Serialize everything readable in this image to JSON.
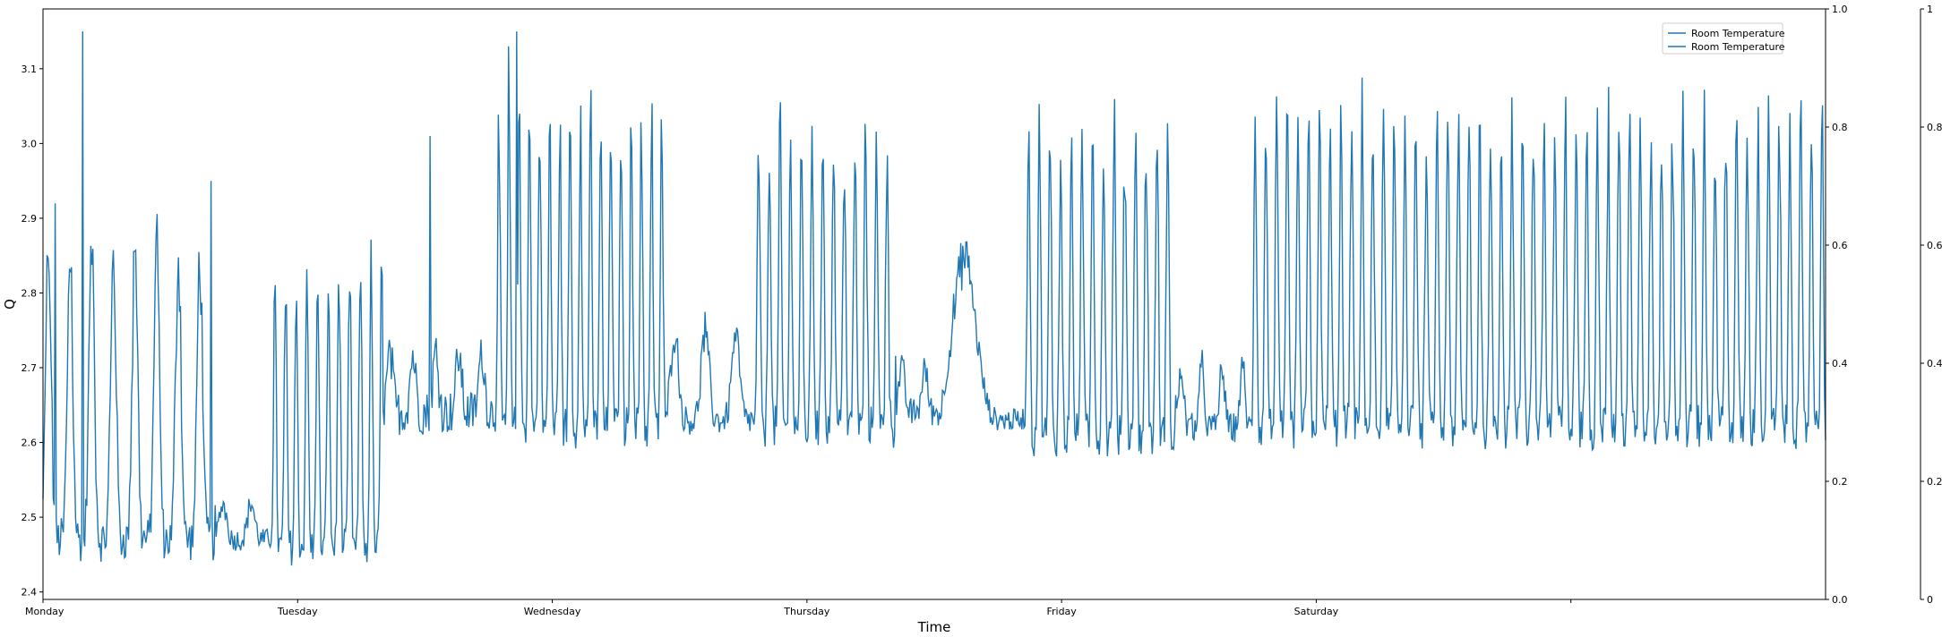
{
  "chart_data": {
    "type": "line",
    "title": "",
    "xlabel": "Time",
    "ylabel": "Q",
    "xlim": [
      0,
      7
    ],
    "ylim": [
      2.39,
      3.18
    ],
    "x_tick_labels": [
      "Monday",
      "Tuesday",
      "Wednesday",
      "Thursday",
      "Friday",
      "Saturday",
      ""
    ],
    "x_tick_values": [
      0,
      1,
      2,
      3,
      4,
      5,
      6
    ],
    "y_ticks": [
      2.4,
      2.5,
      2.6,
      2.7,
      2.8,
      2.9,
      3.0,
      3.1
    ],
    "y_tick_labels": [
      "2.4",
      "2.5",
      "2.6",
      "2.7",
      "2.8",
      "2.9",
      "3.0",
      "3.1"
    ],
    "y2_ticks": [
      0.0,
      0.2,
      0.4,
      0.6,
      0.8,
      1.0
    ],
    "y2_tick_labels": [
      "0.0",
      "0.2",
      "0.4",
      "0.6",
      "0.8",
      "1.0"
    ],
    "y3_ticks": [
      0,
      0.2,
      0.4,
      0.6,
      0.8,
      1
    ],
    "y3_tick_labels": [
      "0",
      "0.2",
      "0.4",
      "0.6",
      "0.8",
      "1"
    ],
    "legend": {
      "position": "top-right",
      "entries": [
        "Room Temperature",
        "Room Temperature"
      ]
    },
    "grid": false,
    "line_color": "#1f77b4",
    "series": [
      {
        "name": "Room Temperature",
        "segments": [
          {
            "start": 0.0,
            "end": 0.68,
            "period": 0.085,
            "low": 2.47,
            "high": 2.86,
            "noise": 0.03
          },
          {
            "start": 0.68,
            "end": 0.9,
            "period": 0.11,
            "low": 2.47,
            "high": 2.52,
            "noise": 0.015
          },
          {
            "start": 0.9,
            "end": 1.34,
            "period": 0.042,
            "low": 2.46,
            "high": 2.84,
            "noise": 0.025
          },
          {
            "start": 1.34,
            "end": 1.78,
            "period": 0.09,
            "low": 2.64,
            "high": 2.72,
            "noise": 0.03
          },
          {
            "start": 1.78,
            "end": 2.45,
            "period": 0.04,
            "low": 2.62,
            "high": 3.04,
            "noise": 0.03
          },
          {
            "start": 2.45,
            "end": 2.8,
            "period": 0.12,
            "low": 2.63,
            "high": 2.75,
            "noise": 0.02
          },
          {
            "start": 2.8,
            "end": 3.35,
            "period": 0.042,
            "low": 2.62,
            "high": 3.02,
            "noise": 0.03
          },
          {
            "start": 3.35,
            "end": 3.53,
            "period": 0.09,
            "low": 2.64,
            "high": 2.7,
            "noise": 0.02
          },
          {
            "start": 3.53,
            "end": 3.86,
            "period": 0.35,
            "low": 2.63,
            "high": 2.85,
            "noise": 0.015
          },
          {
            "start": 3.86,
            "end": 4.45,
            "period": 0.042,
            "low": 2.61,
            "high": 3.02,
            "noise": 0.03
          },
          {
            "start": 4.45,
            "end": 4.75,
            "period": 0.08,
            "low": 2.62,
            "high": 2.7,
            "noise": 0.02
          },
          {
            "start": 4.75,
            "end": 7.0,
            "period": 0.042,
            "low": 2.62,
            "high": 3.03,
            "noise": 0.03
          }
        ]
      }
    ],
    "peaks": [
      {
        "x": 0.155,
        "y": 3.15
      },
      {
        "x": 0.05,
        "y": 2.92
      },
      {
        "x": 0.66,
        "y": 2.95
      },
      {
        "x": 1.52,
        "y": 3.01
      },
      {
        "x": 1.86,
        "y": 3.15
      },
      {
        "x": 1.83,
        "y": 3.13
      }
    ]
  }
}
